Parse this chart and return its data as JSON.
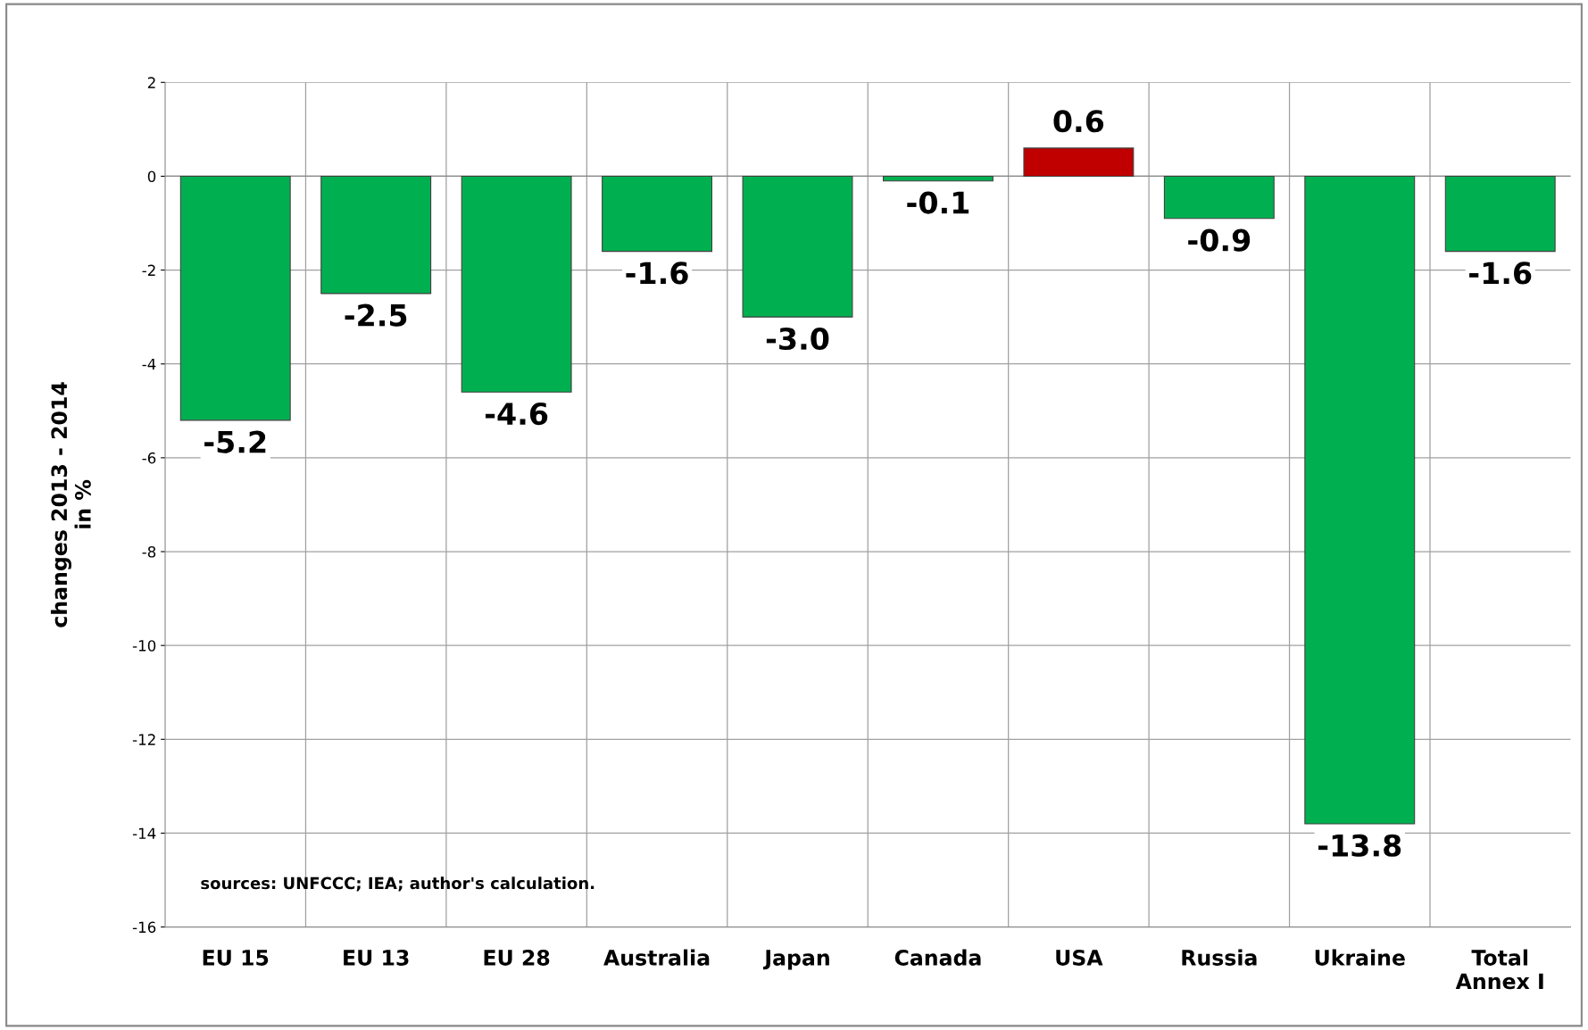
{
  "chart_data": {
    "type": "bar",
    "categories": [
      "EU 15",
      "EU 13",
      "EU 28",
      "Australia",
      "Japan",
      "Canada",
      "USA",
      "Russia",
      "Ukraine",
      "Total\nAnnex I"
    ],
    "values": [
      -5.2,
      -2.5,
      -4.6,
      -1.6,
      -3.0,
      -0.1,
      0.6,
      -0.9,
      -13.8,
      -1.6
    ],
    "colors": [
      "#00b050",
      "#00b050",
      "#00b050",
      "#00b050",
      "#00b050",
      "#00b050",
      "#c00000",
      "#00b050",
      "#00b050",
      "#00b050"
    ],
    "ylabel": "changes 2013 - 2014\nin %",
    "ylim": [
      -16,
      2
    ],
    "yticks": [
      -16,
      -14,
      -12,
      -10,
      -8,
      -6,
      -4,
      -2,
      0,
      2
    ],
    "grid": true,
    "value_labels": [
      "-5.2",
      "-2.5",
      "-4.6",
      "-1.6",
      "-3.0",
      "-0.1",
      "0.6",
      "-0.9",
      "-13.8",
      "-1.6"
    ],
    "annotations": [
      "sources: UNFCCC; IEA; author's calculation."
    ]
  }
}
